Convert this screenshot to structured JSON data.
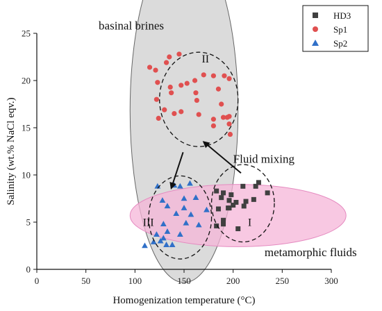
{
  "chart_data": {
    "type": "scatter",
    "xlabel": "Homogenization temperature (°C)",
    "ylabel": "Salinity (wt.% NaCl eqv.)",
    "xlim": [
      0,
      300
    ],
    "ylim": [
      0,
      25
    ],
    "xticks": [
      0,
      50,
      100,
      150,
      200,
      250,
      300
    ],
    "yticks": [
      0,
      5,
      10,
      15,
      20,
      25
    ],
    "legend_position": "top-right",
    "series": [
      {
        "name": "HD3",
        "marker": "square",
        "color": "#404040",
        "points": [
          [
            183,
            8.3
          ],
          [
            190,
            8.1
          ],
          [
            198,
            7.9
          ],
          [
            210,
            8.8
          ],
          [
            223,
            8.8
          ],
          [
            226,
            9.2
          ],
          [
            188,
            7.6
          ],
          [
            196,
            7.3
          ],
          [
            203,
            7.1
          ],
          [
            213,
            7.2
          ],
          [
            221,
            7.4
          ],
          [
            235,
            8.1
          ],
          [
            185,
            6.4
          ],
          [
            195,
            6.5
          ],
          [
            200,
            6.8
          ],
          [
            211,
            6.7
          ],
          [
            190,
            5.2
          ],
          [
            190,
            4.8
          ],
          [
            183,
            4.6
          ],
          [
            205,
            4.3
          ],
          [
            196,
            6.5
          ]
        ]
      },
      {
        "name": "Sp1",
        "marker": "circle",
        "color": "#e05050",
        "points": [
          [
            115,
            21.4
          ],
          [
            121,
            21.1
          ],
          [
            132,
            21.9
          ],
          [
            135,
            22.5
          ],
          [
            145,
            22.8
          ],
          [
            123,
            19.8
          ],
          [
            136,
            19.3
          ],
          [
            153,
            19.7
          ],
          [
            147,
            19.5
          ],
          [
            161,
            20.0
          ],
          [
            170,
            20.6
          ],
          [
            180,
            20.5
          ],
          [
            185,
            19.1
          ],
          [
            191,
            20.5
          ],
          [
            196,
            20.2
          ],
          [
            122,
            18.0
          ],
          [
            137,
            18.7
          ],
          [
            162,
            18.7
          ],
          [
            163,
            17.9
          ],
          [
            188,
            17.5
          ],
          [
            130,
            16.9
          ],
          [
            140,
            16.5
          ],
          [
            147,
            16.7
          ],
          [
            165,
            16.4
          ],
          [
            180,
            15.9
          ],
          [
            190,
            16.1
          ],
          [
            194,
            16.1
          ],
          [
            180,
            15.2
          ],
          [
            196,
            15.4
          ],
          [
            197,
            14.3
          ],
          [
            124,
            16.0
          ],
          [
            196,
            16.2
          ]
        ]
      },
      {
        "name": "Sp2",
        "marker": "triangle",
        "color": "#3070c8",
        "points": [
          [
            123,
            8.8
          ],
          [
            140,
            8.9
          ],
          [
            146,
            8.8
          ],
          [
            156,
            9.1
          ],
          [
            128,
            7.3
          ],
          [
            150,
            7.5
          ],
          [
            162,
            7.6
          ],
          [
            133,
            6.7
          ],
          [
            150,
            6.5
          ],
          [
            173,
            6.3
          ],
          [
            142,
            5.9
          ],
          [
            157,
            5.8
          ],
          [
            129,
            4.8
          ],
          [
            152,
            4.9
          ],
          [
            165,
            4.7
          ],
          [
            133,
            4.0
          ],
          [
            146,
            3.7
          ],
          [
            122,
            3.7
          ],
          [
            129,
            3.3
          ],
          [
            126,
            3.0
          ],
          [
            138,
            2.6
          ],
          [
            132,
            2.6
          ],
          [
            110,
            2.5
          ],
          [
            119,
            2.9
          ]
        ]
      }
    ],
    "regions": [
      {
        "name": "basinal-brines-ellipse",
        "kind": "filled",
        "fill": "#cfcfcf",
        "opacity": 0.75,
        "stroke": "#666666",
        "cx": 150,
        "cy": 16.8,
        "rx": 55,
        "ry": 18.2,
        "rotate": 0
      },
      {
        "name": "metamorphic-fluids-ellipse",
        "kind": "filled",
        "fill": "#f5b5d8",
        "opacity": 0.75,
        "stroke": "#e58ac0",
        "cx": 205,
        "cy": 5.7,
        "rx": 110,
        "ry": 3.3,
        "rotate": 0
      },
      {
        "name": "cluster-II-circle",
        "kind": "dashed",
        "stroke": "#111111",
        "cx": 165,
        "cy": 18.0,
        "rx": 40,
        "ry": 5.0
      },
      {
        "name": "cluster-III-circle",
        "kind": "dashed",
        "stroke": "#111111",
        "cx": 146,
        "cy": 5.5,
        "rx": 32,
        "ry": 4.4
      },
      {
        "name": "cluster-I-circle",
        "kind": "dashed",
        "stroke": "#111111",
        "cx": 210,
        "cy": 7.0,
        "rx": 32,
        "ry": 4.1
      }
    ],
    "arrows": [
      {
        "name": "arrow-down",
        "from": [
          149,
          12.4
        ],
        "to": [
          137,
          8.6
        ]
      },
      {
        "name": "arrow-up",
        "from": [
          208,
          10.2
        ],
        "to": [
          170,
          13.5
        ]
      }
    ],
    "annotations": [
      {
        "name": "label-basinal-brines",
        "text": "basinal brines",
        "x": 63,
        "y": 25.4,
        "size": 17
      },
      {
        "name": "label-II",
        "text": "II",
        "x": 168,
        "y": 21.9,
        "size": 16
      },
      {
        "name": "label-III",
        "text": "III",
        "x": 108,
        "y": 4.6,
        "size": 16
      },
      {
        "name": "label-I",
        "text": "I",
        "x": 215,
        "y": 4.6,
        "size": 16
      },
      {
        "name": "label-fluid-mixing",
        "text": "Fluid mixing",
        "x": 200,
        "y": 11.3,
        "size": 17
      },
      {
        "name": "label-metamorphic-fluids",
        "text": "metamorphic fluids",
        "x": 232,
        "y": 1.4,
        "size": 17
      }
    ]
  }
}
